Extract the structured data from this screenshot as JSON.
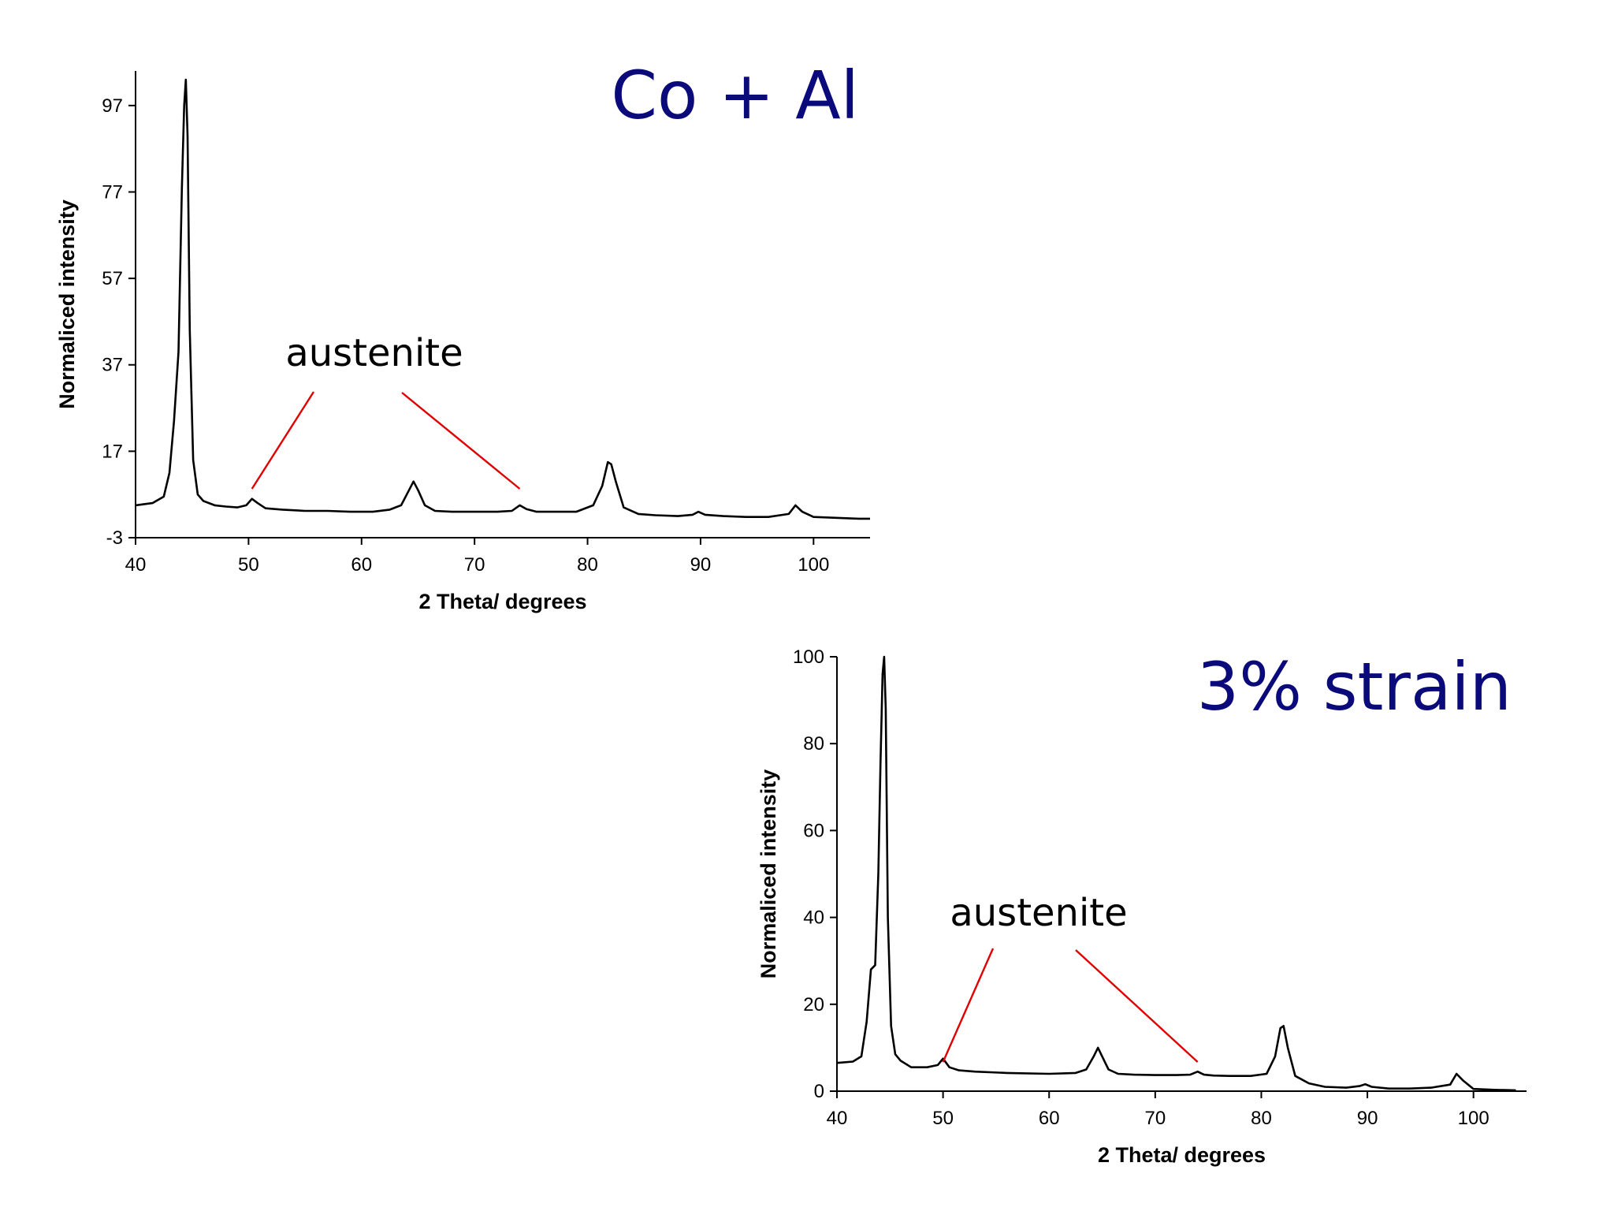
{
  "chart_data": [
    {
      "type": "line",
      "title": "Co + Al",
      "xlabel": "2 Theta/ degrees",
      "ylabel": "Normaliced intensity",
      "xlim": [
        40,
        105
      ],
      "ylim": [
        -3,
        105
      ],
      "xticks": [
        40,
        50,
        60,
        70,
        80,
        90,
        100
      ],
      "yticks": [
        -3,
        17,
        37,
        57,
        77,
        97
      ],
      "grid": false,
      "annotation": {
        "text": "austenite",
        "points_to_x": [
          50.3,
          74.0
        ]
      },
      "series": [
        {
          "color": "#000000",
          "x": [
            40,
            41.5,
            42.5,
            43.0,
            43.4,
            43.8,
            44.1,
            44.3,
            44.45,
            44.6,
            44.8,
            45.1,
            45.5,
            46.0,
            47,
            48,
            49,
            49.8,
            50.3,
            50.8,
            51.5,
            53,
            55,
            57,
            59,
            61,
            62.5,
            63.5,
            64.2,
            64.6,
            65.0,
            65.6,
            66.5,
            68,
            70,
            72,
            73.3,
            74.0,
            74.6,
            75.5,
            77,
            79,
            80.5,
            81.3,
            81.8,
            82.1,
            82.5,
            83.2,
            84.5,
            86,
            88,
            89.3,
            89.8,
            90.4,
            92,
            94,
            96,
            97.8,
            98.4,
            99.0,
            100,
            102,
            104,
            105
          ],
          "values": [
            4.5,
            5,
            6.5,
            12,
            24,
            40,
            78,
            97,
            103,
            90,
            45,
            15,
            7,
            5.5,
            4.5,
            4.2,
            4.0,
            4.5,
            6,
            5,
            3.8,
            3.5,
            3.2,
            3.2,
            3.0,
            3.0,
            3.5,
            4.5,
            8,
            10,
            8,
            4.5,
            3.2,
            3.0,
            3.0,
            3.0,
            3.2,
            4.5,
            3.6,
            3.0,
            3.0,
            3.0,
            4.5,
            9,
            14.5,
            14,
            10,
            4,
            2.5,
            2.2,
            2.0,
            2.3,
            3.0,
            2.3,
            2.0,
            1.8,
            1.8,
            2.5,
            4.5,
            3.0,
            1.8,
            1.6,
            1.4,
            1.4
          ]
        }
      ]
    },
    {
      "type": "line",
      "title": "3% strain",
      "xlabel": "2 Theta/ degrees",
      "ylabel": "Normaliced intensity",
      "xlim": [
        40,
        105
      ],
      "ylim": [
        0,
        100
      ],
      "xticks": [
        40,
        50,
        60,
        70,
        80,
        90,
        100
      ],
      "yticks": [
        0,
        20,
        40,
        60,
        80,
        100
      ],
      "grid": false,
      "annotation": {
        "text": "austenite",
        "points_to_x": [
          50.0,
          74.0
        ]
      },
      "series": [
        {
          "color": "#000000",
          "x": [
            40,
            41.5,
            42.3,
            42.8,
            43.2,
            43.6,
            43.9,
            44.1,
            44.3,
            44.45,
            44.6,
            44.8,
            45.1,
            45.5,
            46.0,
            47,
            48.5,
            49.5,
            50.0,
            50.6,
            51.5,
            53,
            56,
            60,
            62.5,
            63.5,
            64.2,
            64.6,
            65.0,
            65.6,
            66.5,
            68,
            70,
            72,
            73.3,
            74.0,
            74.6,
            75.5,
            77,
            79,
            80.5,
            81.3,
            81.8,
            82.1,
            82.5,
            83.2,
            84.5,
            86,
            88,
            89.3,
            89.8,
            90.4,
            92,
            94,
            96,
            97.8,
            98.4,
            99.0,
            100,
            102,
            104
          ],
          "values": [
            6.5,
            6.8,
            8,
            16,
            28,
            29,
            50,
            75,
            96,
            100,
            88,
            40,
            15,
            8.5,
            7,
            5.5,
            5.5,
            6,
            7.5,
            5.5,
            4.8,
            4.5,
            4.2,
            4.0,
            4.2,
            5,
            8,
            10,
            8,
            5,
            4.0,
            3.8,
            3.7,
            3.7,
            3.8,
            4.5,
            3.8,
            3.6,
            3.5,
            3.5,
            4.0,
            8,
            14.5,
            15,
            10,
            3.5,
            1.8,
            1.0,
            0.8,
            1.2,
            1.6,
            1.0,
            0.6,
            0.6,
            0.8,
            1.5,
            4.0,
            2.5,
            0.5,
            0.3,
            0.2
          ]
        }
      ]
    }
  ]
}
